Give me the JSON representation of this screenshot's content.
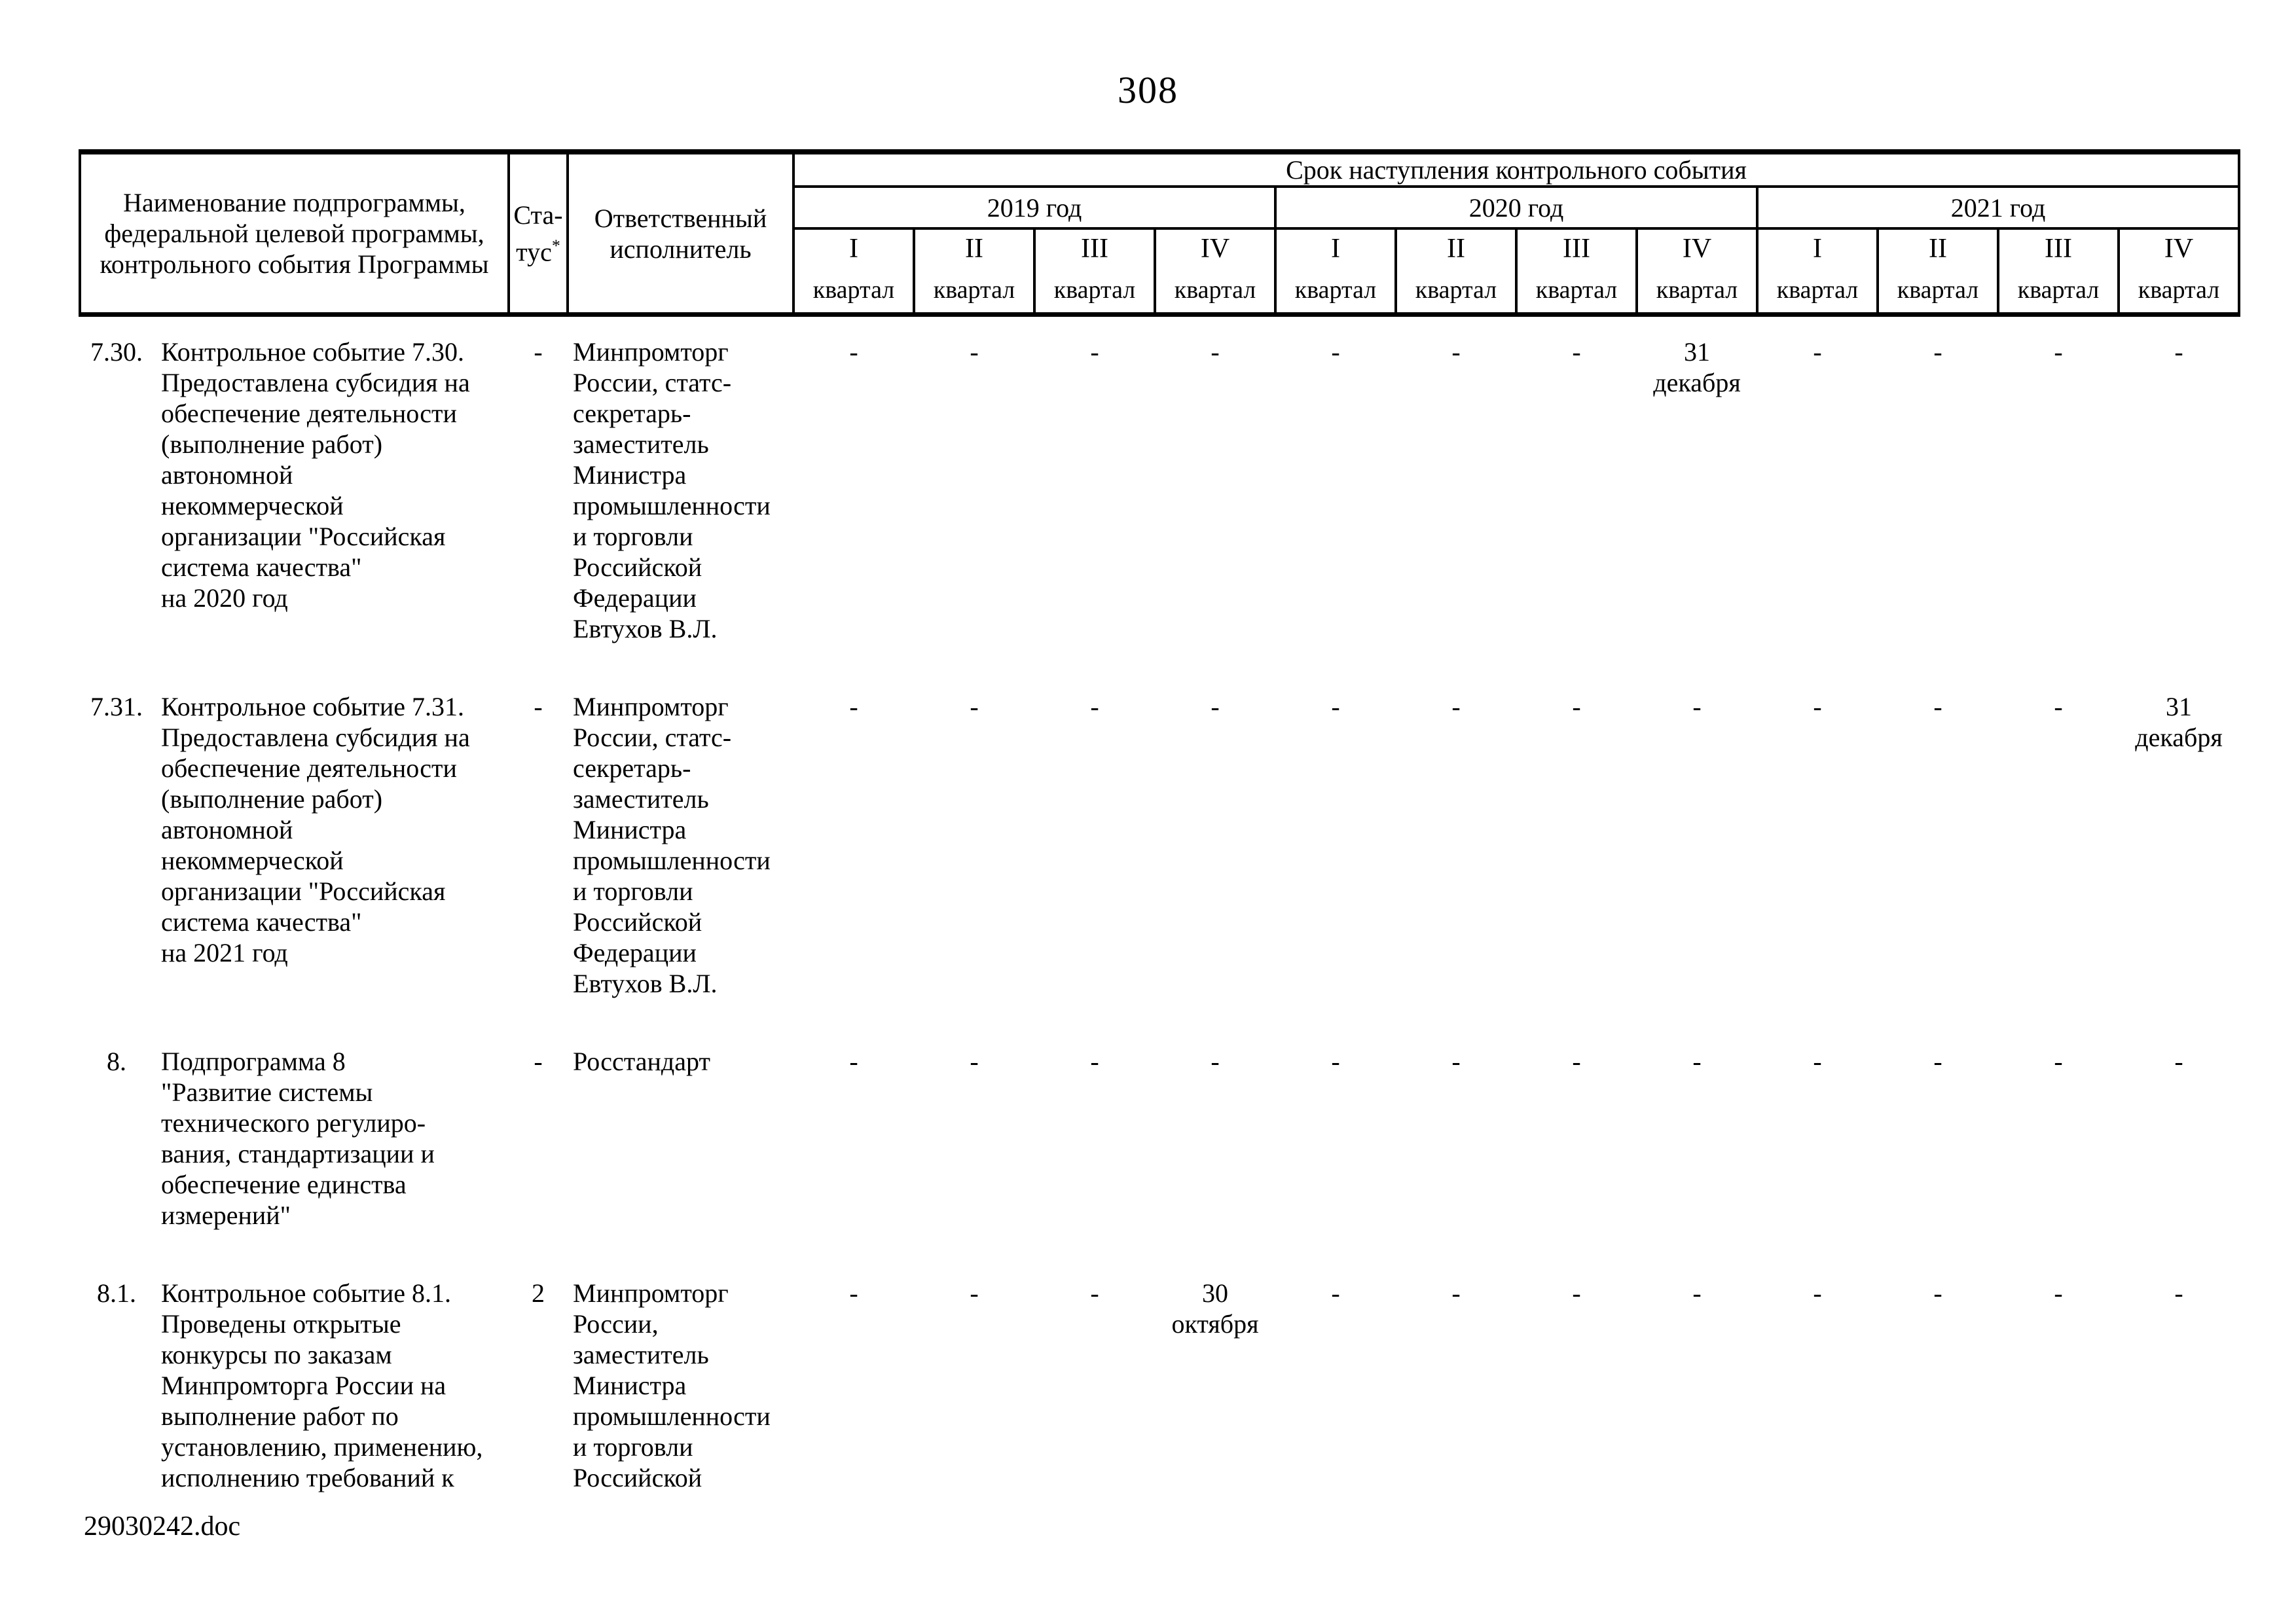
{
  "page": {
    "number": "308",
    "footer": "29030242.doc"
  },
  "table": {
    "header": {
      "name": "Наименование подпрограммы,\nфедеральной целевой программы,\nконтрольного события Программы",
      "status_line1": "Ста-",
      "status_line2": "тус",
      "status_asterisk": "*",
      "executor": "Ответственный\nисполнитель",
      "deadline": "Срок наступления контрольного события",
      "years": [
        "2019 год",
        "2020 год",
        "2021 год"
      ],
      "quarter_numerals": [
        "I",
        "II",
        "III",
        "IV"
      ],
      "quarter_word": "квартал"
    },
    "rows": [
      {
        "num": "7.30.",
        "name": "Контрольное событие 7.30.\nПредоставлена субсидия на\nобеспечение деятельности\n(выполнение работ)\nавтономной\nнекоммерческой\nорганизации \"Российская\nсистема качества\"\nна 2020 год",
        "status": "-",
        "executor": "Минпромторг\nРоссии, статс-\nсекретарь-\nзаместитель\nМинистра\nпромышленности\nи торговли\nРоссийской\nФедерации\nЕвтухов В.Л.",
        "quarters": [
          "-",
          "-",
          "-",
          "-",
          "-",
          "-",
          "-",
          "31\nдекабря",
          "-",
          "-",
          "-",
          "-"
        ]
      },
      {
        "num": "7.31.",
        "name": "Контрольное событие 7.31.\nПредоставлена субсидия на\nобеспечение деятельности\n(выполнение работ)\nавтономной\nнекоммерческой\nорганизации \"Российская\nсистема качества\"\nна 2021 год",
        "status": "-",
        "executor": "Минпромторг\nРоссии, статс-\nсекретарь-\nзаместитель\nМинистра\nпромышленности\nи торговли\nРоссийской\nФедерации\nЕвтухов В.Л.",
        "quarters": [
          "-",
          "-",
          "-",
          "-",
          "-",
          "-",
          "-",
          "-",
          "-",
          "-",
          "-",
          "31\nдекабря"
        ]
      },
      {
        "num": "8.",
        "name": "Подпрограмма 8\n\"Развитие системы\nтехнического регулиро-\nвания, стандартизации и\nобеспечение единства\nизмерений\"",
        "status": "-",
        "executor": "Росстандарт",
        "quarters": [
          "-",
          "-",
          "-",
          "-",
          "-",
          "-",
          "-",
          "-",
          "-",
          "-",
          "-",
          "-"
        ]
      },
      {
        "num": "8.1.",
        "name": "Контрольное событие 8.1.\nПроведены открытые\nконкурсы по заказам\nМинпромторга России на\nвыполнение работ по\nустановлению, применению,\nисполнению требований к",
        "status": "2",
        "executor": "Минпромторг\nРоссии,\nзаместитель\nМинистра\nпромышленности\nи торговли\nРоссийской",
        "quarters": [
          "-",
          "-",
          "-",
          "30\nоктября",
          "-",
          "-",
          "-",
          "-",
          "-",
          "-",
          "-",
          "-"
        ]
      }
    ]
  }
}
